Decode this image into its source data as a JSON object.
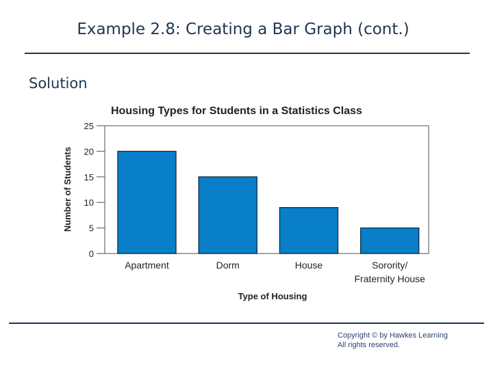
{
  "slide": {
    "title": "Example 2.8: Creating a Bar Graph (cont.)",
    "section_label": "Solution"
  },
  "footer": {
    "copyright_line1": "Copyright © by Hawkes Learning",
    "copyright_line2": "All rights reserved."
  },
  "colors": {
    "bar_fill": "#0a7fc9",
    "bar_stroke": "#0b2233",
    "title_text": "#1f3553",
    "rule": "#1f3553",
    "chart_text": "#222222"
  },
  "chart_data": {
    "type": "bar",
    "title": "Housing Types for Students in a Statistics Class",
    "xlabel": "Type of Housing",
    "ylabel": "Number of Students",
    "categories": [
      [
        "Apartment"
      ],
      [
        "Dorm"
      ],
      [
        "House"
      ],
      [
        "Sorority/",
        "Fraternity House"
      ]
    ],
    "values": [
      20,
      15,
      9,
      5
    ],
    "ylim": [
      0,
      25
    ],
    "yticks": [
      0,
      5,
      10,
      15,
      20,
      25
    ],
    "grid": false,
    "legend": "none"
  }
}
